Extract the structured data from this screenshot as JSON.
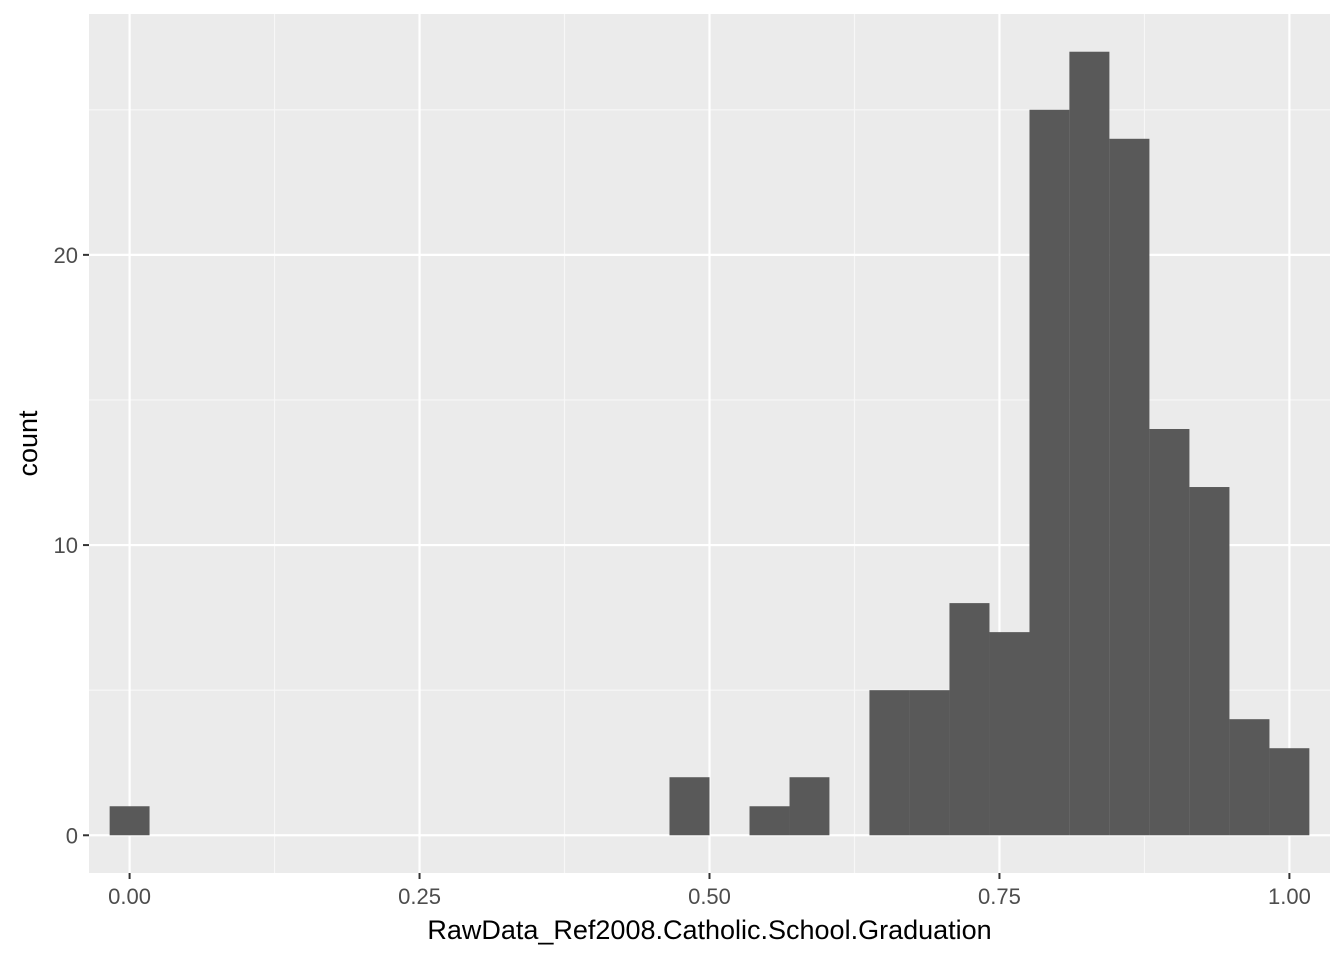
{
  "chart_data": {
    "type": "histogram",
    "xlabel": "RawData_Ref2008.Catholic.School.Graduation",
    "ylabel": "count",
    "title": "",
    "xlim": [
      -0.035,
      1.035
    ],
    "ylim": [
      -1.3,
      28.3
    ],
    "x_ticks": [
      0.0,
      0.25,
      0.5,
      0.75,
      1.0
    ],
    "x_tick_labels": [
      "0.00",
      "0.25",
      "0.50",
      "0.75",
      "1.00"
    ],
    "x_minor_ticks": [
      0.125,
      0.375,
      0.625,
      0.875
    ],
    "y_ticks": [
      0,
      10,
      20
    ],
    "y_tick_labels": [
      "0",
      "10",
      "20"
    ],
    "y_minor_ticks": [
      5,
      15,
      25
    ],
    "bin_width": 0.0345,
    "bins": [
      {
        "x0": -0.0172,
        "x1": 0.0172,
        "count": 1
      },
      {
        "x0": 0.4655,
        "x1": 0.5,
        "count": 2
      },
      {
        "x0": 0.5345,
        "x1": 0.569,
        "count": 1
      },
      {
        "x0": 0.569,
        "x1": 0.6034,
        "count": 2
      },
      {
        "x0": 0.6379,
        "x1": 0.6724,
        "count": 5
      },
      {
        "x0": 0.6724,
        "x1": 0.7069,
        "count": 5
      },
      {
        "x0": 0.7069,
        "x1": 0.7414,
        "count": 8
      },
      {
        "x0": 0.7414,
        "x1": 0.7759,
        "count": 7
      },
      {
        "x0": 0.7759,
        "x1": 0.8103,
        "count": 25
      },
      {
        "x0": 0.8103,
        "x1": 0.8448,
        "count": 27
      },
      {
        "x0": 0.8448,
        "x1": 0.8793,
        "count": 24
      },
      {
        "x0": 0.8793,
        "x1": 0.9138,
        "count": 14
      },
      {
        "x0": 0.9138,
        "x1": 0.9483,
        "count": 12
      },
      {
        "x0": 0.9483,
        "x1": 0.9828,
        "count": 4
      },
      {
        "x0": 0.9828,
        "x1": 1.0172,
        "count": 3
      }
    ],
    "colors": {
      "panel_background": "#ebebeb",
      "grid_major": "#ffffff",
      "grid_minor": "#f7f7f7",
      "bar_fill": "#595959",
      "tick_color": "#333333"
    }
  }
}
